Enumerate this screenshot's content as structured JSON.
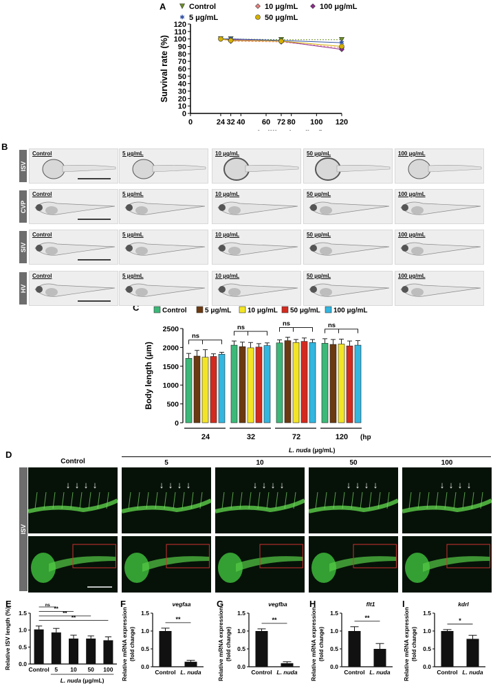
{
  "panels": {
    "A": "A",
    "B": "B",
    "C": "C",
    "D": "D",
    "E": "E",
    "F": "F",
    "G": "G",
    "H": "H",
    "I": "I"
  },
  "chart_data": [
    {
      "id": "A",
      "type": "line",
      "ylabel": "Survival rate (%)",
      "xlabel": "Hours post ferlilization (hpf)",
      "xlim": [
        0,
        120
      ],
      "ylim": [
        0,
        120
      ],
      "xticks": [
        "0",
        "24",
        "32",
        "40",
        "60",
        "72",
        "80",
        "100",
        "120"
      ],
      "xtick_values": [
        0,
        24,
        32,
        40,
        60,
        72,
        80,
        100,
        120
      ],
      "yticks": [
        "0",
        "10",
        "20",
        "30",
        "40",
        "50",
        "60",
        "70",
        "80",
        "90",
        "100",
        "110",
        "120"
      ],
      "x": [
        24,
        32,
        72,
        120
      ],
      "legend": [
        "Control",
        "10 μg/mL",
        "100 μg/mL",
        "5 μg/mL",
        "50 μg/mL"
      ],
      "series": [
        {
          "name": "Control",
          "values": [
            100,
            100,
            99,
            99
          ],
          "color": "#6b8e23",
          "marker": "triangle-down",
          "dash": "2,2"
        },
        {
          "name": "10 μg/mL",
          "values": [
            100,
            97,
            96,
            88
          ],
          "color": "#e88080",
          "marker": "diamond",
          "dash": "3,2"
        },
        {
          "name": "100 μg/mL",
          "values": [
            100,
            99,
            97,
            86
          ],
          "color": "#8e2c8e",
          "marker": "diamond",
          "dash": ""
        },
        {
          "name": "5 μg/mL",
          "values": [
            100,
            100,
            98,
            95
          ],
          "color": "#3050a0",
          "marker": "star",
          "dash": ""
        },
        {
          "name": "50 μg/mL",
          "values": [
            100,
            98,
            97,
            90
          ],
          "color": "#d4b000",
          "marker": "circle",
          "dash": ""
        }
      ]
    },
    {
      "id": "C",
      "type": "bar",
      "ylabel": "Body length (μm)",
      "xunit": "(hpf)",
      "ylim": [
        0,
        2500
      ],
      "yticks": [
        "0",
        "500",
        "1000",
        "1500",
        "2000",
        "2500"
      ],
      "categories": [
        "24",
        "32",
        "72",
        "120"
      ],
      "legend": [
        "Control",
        "5 μg/mL",
        "10 μg/mL",
        "50 μg/mL",
        "100 μg/mL"
      ],
      "colors": [
        "#3cb878",
        "#6b3a10",
        "#f3e526",
        "#d42a1e",
        "#33b6df"
      ],
      "series": [
        {
          "name": "Control",
          "values": [
            1710,
            2060,
            2120,
            2110
          ]
        },
        {
          "name": "5 μg/mL",
          "values": [
            1770,
            2020,
            2180,
            2080
          ]
        },
        {
          "name": "10 μg/mL",
          "values": [
            1740,
            1990,
            2130,
            2090
          ]
        },
        {
          "name": "50 μg/mL",
          "values": [
            1760,
            2010,
            2160,
            2040
          ]
        },
        {
          "name": "100 μg/mL",
          "values": [
            1820,
            2050,
            2130,
            2060
          ]
        }
      ],
      "errors": [
        [
          130,
          110,
          80,
          120
        ],
        [
          150,
          120,
          90,
          130
        ],
        [
          200,
          140,
          80,
          130
        ],
        [
          70,
          90,
          90,
          130
        ],
        [
          50,
          70,
          80,
          120
        ]
      ],
      "sig_label": "ns"
    },
    {
      "id": "E",
      "type": "bar",
      "ylabel": "Relative ISV length (%)",
      "xlabel_italic": "L. nuda",
      "xlabel_unit": "(μg/mL)",
      "ylim": [
        0,
        1.5
      ],
      "yticks": [
        "0.0",
        "0.5",
        "1.0",
        "1.5"
      ],
      "categories": [
        "Control",
        "5",
        "10",
        "50",
        "100"
      ],
      "values": [
        1.02,
        0.93,
        0.75,
        0.75,
        0.7
      ],
      "errors": [
        0.1,
        0.12,
        0.1,
        0.08,
        0.1
      ],
      "sig": [
        {
          "label": "ns",
          "from": 0,
          "to": 1
        },
        {
          "label": "**",
          "from": 0,
          "to": 2
        },
        {
          "label": "**",
          "from": 0,
          "to": 3
        },
        {
          "label": "**",
          "from": 0,
          "to": 4
        }
      ]
    },
    {
      "id": "F",
      "type": "bar",
      "gene": "vegfaa",
      "ylabel": "Relative mRNA expression (fold change)",
      "ylim": [
        0,
        1.5
      ],
      "yticks": [
        "0.0",
        "0.5",
        "1.0",
        "1.5"
      ],
      "categories": [
        "Control",
        "L. nuda"
      ],
      "values": [
        1.0,
        0.14
      ],
      "errors": [
        0.08,
        0.04
      ],
      "sig": "**"
    },
    {
      "id": "G",
      "type": "bar",
      "gene": "vegfba",
      "ylabel": "Relative mRNA expression (fold change)",
      "ylim": [
        0,
        1.5
      ],
      "yticks": [
        "0.0",
        "0.5",
        "1.0",
        "1.5"
      ],
      "categories": [
        "Control",
        "L. nuda"
      ],
      "values": [
        1.0,
        0.1
      ],
      "errors": [
        0.06,
        0.04
      ],
      "sig": "**"
    },
    {
      "id": "H",
      "type": "bar",
      "gene": "flt1",
      "ylabel": "Relative mRNA expression (fold change)",
      "ylim": [
        0,
        1.5
      ],
      "yticks": [
        "0.0",
        "0.5",
        "1.0",
        "1.5"
      ],
      "categories": [
        "Control",
        "L. nuda"
      ],
      "values": [
        1.0,
        0.5
      ],
      "errors": [
        0.12,
        0.15
      ],
      "sig": "**"
    },
    {
      "id": "I",
      "type": "bar",
      "gene": "kdrl",
      "ylabel": "Relative mRNA expression (fold change)",
      "ylim": [
        0,
        1.5
      ],
      "yticks": [
        "0.0",
        "0.5",
        "1.0",
        "1.5"
      ],
      "categories": [
        "Control",
        "L. nuda"
      ],
      "values": [
        1.0,
        0.78
      ],
      "errors": [
        0.04,
        0.1
      ],
      "sig": "*"
    }
  ],
  "panelB": {
    "rows": [
      "ISV",
      "CVP",
      "SIV",
      "HV"
    ],
    "cols": [
      "Control",
      "5 μg/mL",
      "10 μg/mL",
      "50 μg/mL",
      "100 μg/mL"
    ]
  },
  "panelD": {
    "title_italic": "L. nuda",
    "title_unit": "(μg/mL)",
    "cols": [
      "Control",
      "5",
      "10",
      "50",
      "100"
    ],
    "row_label": "ISV"
  }
}
